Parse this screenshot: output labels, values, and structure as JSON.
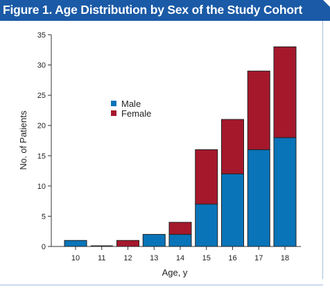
{
  "chart_data": {
    "type": "bar",
    "stacked": true,
    "title": "Figure 1. Age Distribution by Sex of the Study Cohort",
    "xlabel": "Age, y",
    "ylabel": "No. of Patients",
    "categories": [
      "10",
      "11",
      "12",
      "13",
      "14",
      "15",
      "16",
      "17",
      "18"
    ],
    "ylim": [
      0,
      35
    ],
    "yticks": [
      0,
      5,
      10,
      15,
      20,
      25,
      30,
      35
    ],
    "series": [
      {
        "name": "Male",
        "color": "#0a74b9",
        "values": [
          1,
          0,
          0,
          2,
          2,
          7,
          12,
          16,
          18
        ]
      },
      {
        "name": "Female",
        "color": "#a5182c",
        "values": [
          0,
          0,
          1,
          0,
          2,
          9,
          9,
          13,
          15
        ]
      }
    ],
    "legend": {
      "position": "upper-left",
      "entries": [
        "Male",
        "Female"
      ]
    },
    "grid": false
  }
}
